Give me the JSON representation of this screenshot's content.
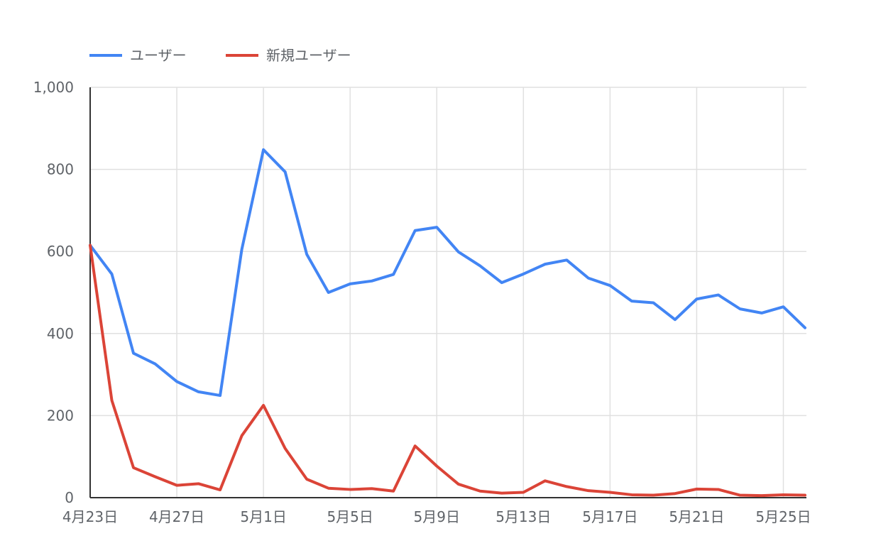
{
  "chart_data": {
    "type": "line",
    "title": "",
    "xlabel": "",
    "ylabel": "",
    "ylim": [
      0,
      1000
    ],
    "yticks": [
      "0",
      "200",
      "400",
      "600",
      "800",
      "1,000"
    ],
    "xtick_labels": [
      "4月23日",
      "4月27日",
      "5月1日",
      "5月5日",
      "5月9日",
      "5月13日",
      "5月17日",
      "5月21日",
      "5月25日"
    ],
    "x": [
      "4月23日",
      "4月24日",
      "4月25日",
      "4月26日",
      "4月27日",
      "4月28日",
      "4月29日",
      "4月30日",
      "5月1日",
      "5月2日",
      "5月3日",
      "5月4日",
      "5月5日",
      "5月6日",
      "5月7日",
      "5月8日",
      "5月9日",
      "5月10日",
      "5月11日",
      "5月12日",
      "5月13日",
      "5月14日",
      "5月15日",
      "5月16日",
      "5月17日",
      "5月18日",
      "5月19日",
      "5月20日",
      "5月21日",
      "5月22日",
      "5月23日",
      "5月24日",
      "5月25日",
      "5月26日"
    ],
    "grid": true,
    "legend_position": "top-left",
    "series": [
      {
        "name": "ユーザー",
        "color": "#4285f4",
        "values": [
          615,
          545,
          352,
          326,
          283,
          258,
          249,
          605,
          848,
          794,
          593,
          500,
          521,
          528,
          544,
          651,
          659,
          599,
          565,
          524,
          545,
          569,
          579,
          535,
          517,
          479,
          475,
          434,
          484,
          494,
          460,
          450,
          465,
          414
        ]
      },
      {
        "name": "新規ユーザー",
        "color": "#db4437",
        "values": [
          615,
          237,
          73,
          51,
          30,
          34,
          19,
          151,
          225,
          120,
          45,
          23,
          20,
          22,
          16,
          126,
          77,
          33,
          16,
          11,
          13,
          41,
          27,
          17,
          13,
          7,
          6,
          10,
          21,
          20,
          6,
          5,
          7,
          6
        ]
      }
    ]
  }
}
